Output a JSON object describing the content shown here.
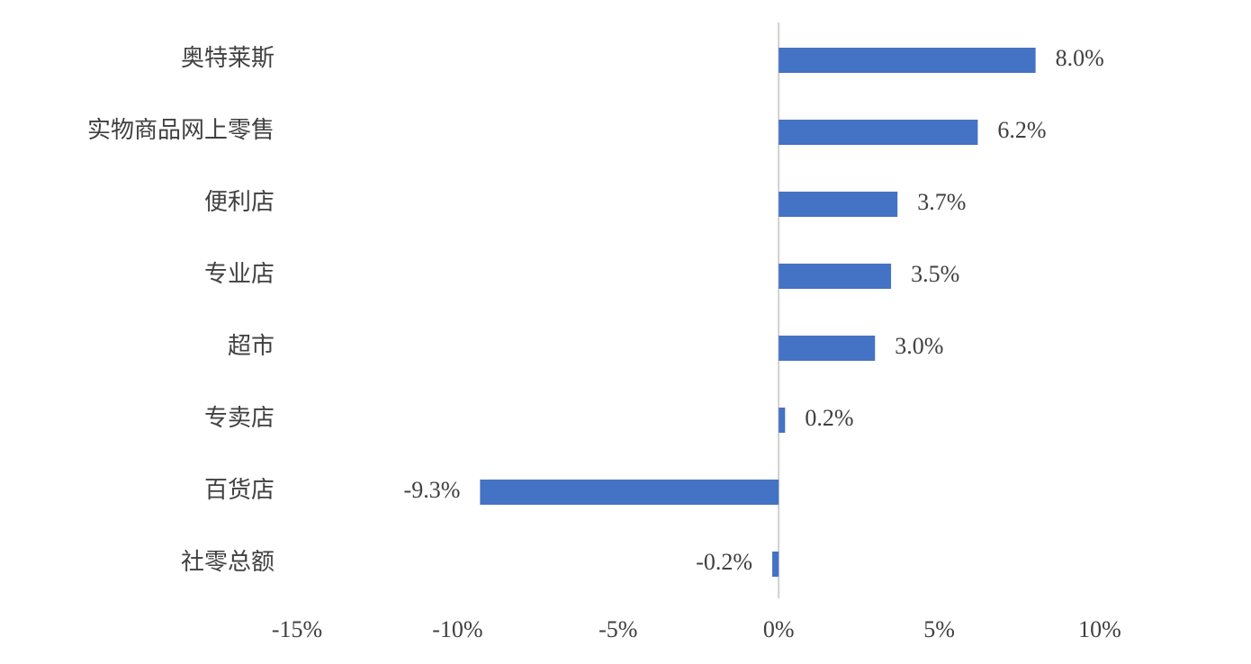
{
  "chart_data": {
    "type": "hbar",
    "categories": [
      "奥特莱斯",
      "实物商品网上零售",
      "便利店",
      "专业店",
      "超市",
      "专卖店",
      "百货店",
      "社零总额"
    ],
    "values": [
      8.0,
      6.2,
      3.7,
      3.5,
      3.0,
      0.2,
      -9.3,
      -0.2
    ],
    "value_labels": [
      "8.0%",
      "6.2%",
      "3.7%",
      "3.5%",
      "3.0%",
      "0.2%",
      "-9.3%",
      "-0.2%"
    ],
    "color": "#4472c4",
    "xlim": [
      -15,
      10
    ],
    "xticks": [
      {
        "value": -15,
        "label": "-15%"
      },
      {
        "value": -10,
        "label": "-10%"
      },
      {
        "value": -5,
        "label": "-5%"
      },
      {
        "value": 0,
        "label": "0%"
      },
      {
        "value": 5,
        "label": "5%"
      },
      {
        "value": 10,
        "label": "10%"
      }
    ]
  }
}
